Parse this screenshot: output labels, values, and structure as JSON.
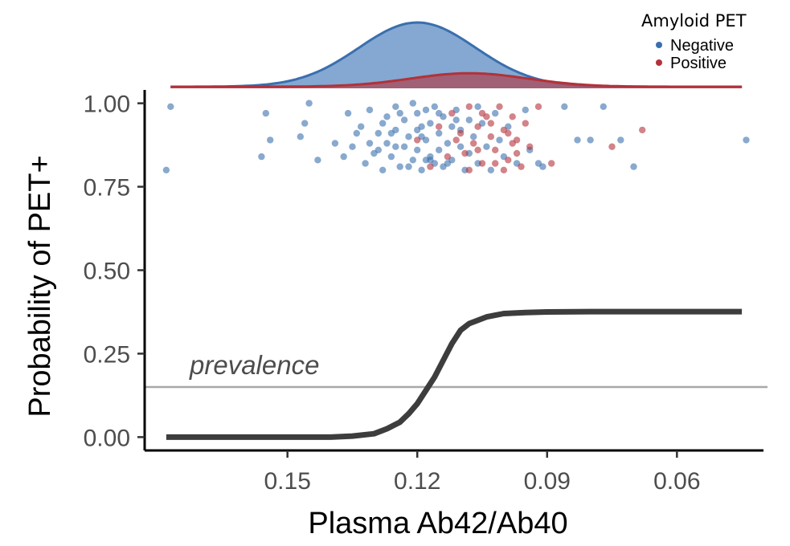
{
  "chart_data": {
    "type": "line",
    "xlabel": "Plasma Ab42/Ab40",
    "ylabel": "Probability of PET+",
    "x_reversed": true,
    "xlim": [
      0.183,
      0.04
    ],
    "ylim": [
      -0.04,
      1.04
    ],
    "x_ticks": [
      {
        "value": 0.15,
        "label": "0.15"
      },
      {
        "value": 0.12,
        "label": "0.12"
      },
      {
        "value": 0.09,
        "label": "0.09"
      },
      {
        "value": 0.06,
        "label": "0.06"
      }
    ],
    "y_ticks": [
      {
        "value": 0.0,
        "label": "0.00"
      },
      {
        "value": 0.25,
        "label": "0.25"
      },
      {
        "value": 0.5,
        "label": "0.50"
      },
      {
        "value": 0.75,
        "label": "0.75"
      },
      {
        "value": 1.0,
        "label": "1.00"
      }
    ],
    "grid": false,
    "legend": {
      "title": "Amyloid PET",
      "position": "top-right",
      "entries": [
        {
          "label": "Negative",
          "color": "#3a6fae"
        },
        {
          "label": "Positive",
          "color": "#b2323a"
        }
      ]
    },
    "prevalence": {
      "y": 0.15,
      "label": "prevalence",
      "color": "#a8a8a8"
    },
    "probability_curve": {
      "color": "#3d3d3d",
      "x": [
        0.178,
        0.16,
        0.14,
        0.135,
        0.13,
        0.127,
        0.124,
        0.122,
        0.12,
        0.118,
        0.116,
        0.114,
        0.112,
        0.11,
        0.108,
        0.106,
        0.104,
        0.102,
        0.1,
        0.095,
        0.09,
        0.08,
        0.06,
        0.045
      ],
      "y": [
        0.0,
        0.0,
        0.0,
        0.003,
        0.01,
        0.025,
        0.045,
        0.07,
        0.1,
        0.14,
        0.18,
        0.23,
        0.28,
        0.32,
        0.34,
        0.35,
        0.36,
        0.365,
        0.37,
        0.373,
        0.375,
        0.376,
        0.376,
        0.376
      ]
    },
    "density": {
      "Negative": {
        "mean": 0.12,
        "sd": 0.0135,
        "relative_height": 1.0,
        "color": "#3a6fae",
        "fill": "#7da3cf"
      },
      "Positive": {
        "mean": 0.108,
        "sd": 0.0135,
        "relative_height": 0.21,
        "color": "#b2323a",
        "fill": "#a84d5e"
      }
    },
    "series": [
      {
        "name": "Negative",
        "color": "#3a6fae",
        "points": [
          [
            0.177,
            0.99
          ],
          [
            0.178,
            0.8
          ],
          [
            0.155,
            0.97
          ],
          [
            0.156,
            0.84
          ],
          [
            0.154,
            0.89
          ],
          [
            0.145,
            1.0
          ],
          [
            0.147,
            0.9
          ],
          [
            0.146,
            0.94
          ],
          [
            0.143,
            0.83
          ],
          [
            0.139,
            0.88
          ],
          [
            0.136,
            0.97
          ],
          [
            0.135,
            0.87
          ],
          [
            0.133,
            0.93
          ],
          [
            0.132,
            0.82
          ],
          [
            0.131,
            0.98
          ],
          [
            0.13,
            0.85
          ],
          [
            0.129,
            0.91
          ],
          [
            0.128,
            0.8
          ],
          [
            0.127,
            0.96
          ],
          [
            0.127,
            0.88
          ],
          [
            0.126,
            0.84
          ],
          [
            0.125,
            0.99
          ],
          [
            0.125,
            0.92
          ],
          [
            0.124,
            0.81
          ],
          [
            0.123,
            0.95
          ],
          [
            0.123,
            0.87
          ],
          [
            0.122,
            0.9
          ],
          [
            0.121,
            1.0
          ],
          [
            0.121,
            0.83
          ],
          [
            0.12,
            0.97
          ],
          [
            0.12,
            0.86
          ],
          [
            0.119,
            0.93
          ],
          [
            0.119,
            0.8
          ],
          [
            0.118,
            0.98
          ],
          [
            0.118,
            0.89
          ],
          [
            0.117,
            0.84
          ],
          [
            0.117,
            0.94
          ],
          [
            0.116,
            0.82
          ],
          [
            0.116,
            0.99
          ],
          [
            0.115,
            0.91
          ],
          [
            0.115,
            0.86
          ],
          [
            0.114,
            0.96
          ],
          [
            0.114,
            0.81
          ],
          [
            0.113,
            0.88
          ],
          [
            0.112,
            0.93
          ],
          [
            0.112,
            0.83
          ],
          [
            0.111,
            0.98
          ],
          [
            0.11,
            0.87
          ],
          [
            0.11,
            0.92
          ],
          [
            0.109,
            0.8
          ],
          [
            0.108,
            0.95
          ],
          [
            0.108,
            0.85
          ],
          [
            0.107,
            0.9
          ],
          [
            0.106,
            0.99
          ],
          [
            0.106,
            0.82
          ],
          [
            0.105,
            0.94
          ],
          [
            0.104,
            0.87
          ],
          [
            0.103,
            0.8
          ],
          [
            0.102,
            0.97
          ],
          [
            0.101,
            0.89
          ],
          [
            0.1,
            0.84
          ],
          [
            0.099,
            0.93
          ],
          [
            0.097,
            0.82
          ],
          [
            0.095,
            0.98
          ],
          [
            0.094,
            0.86
          ],
          [
            0.092,
            0.82
          ],
          [
            0.091,
            0.81
          ],
          [
            0.086,
            0.99
          ],
          [
            0.083,
            0.89
          ],
          [
            0.077,
            0.99
          ],
          [
            0.08,
            0.89
          ],
          [
            0.073,
            0.89
          ],
          [
            0.07,
            0.81
          ],
          [
            0.044,
            0.89
          ],
          [
            0.125,
            0.87
          ],
          [
            0.122,
            0.81
          ],
          [
            0.119,
            0.9
          ],
          [
            0.117,
            0.83
          ],
          [
            0.128,
            0.94
          ],
          [
            0.131,
            0.88
          ],
          [
            0.134,
            0.91
          ],
          [
            0.137,
            0.84
          ],
          [
            0.124,
            0.97
          ],
          [
            0.113,
            0.82
          ],
          [
            0.111,
            0.95
          ],
          [
            0.126,
            0.91
          ],
          [
            0.129,
            0.86
          ],
          [
            0.12,
            0.92
          ],
          [
            0.118,
            0.83
          ],
          [
            0.115,
            0.97
          ]
        ]
      },
      {
        "name": "Positive",
        "color": "#b2323a",
        "points": [
          [
            0.112,
            0.97
          ],
          [
            0.11,
            0.91
          ],
          [
            0.109,
            0.85
          ],
          [
            0.108,
            0.99
          ],
          [
            0.107,
            0.88
          ],
          [
            0.106,
            0.93
          ],
          [
            0.105,
            0.82
          ],
          [
            0.104,
            0.96
          ],
          [
            0.103,
            0.9
          ],
          [
            0.102,
            0.86
          ],
          [
            0.101,
            0.99
          ],
          [
            0.1,
            0.92
          ],
          [
            0.099,
            0.83
          ],
          [
            0.098,
            0.96
          ],
          [
            0.097,
            0.89
          ],
          [
            0.096,
            0.81
          ],
          [
            0.095,
            0.94
          ],
          [
            0.094,
            0.87
          ],
          [
            0.092,
            0.99
          ],
          [
            0.113,
            0.84
          ],
          [
            0.115,
            0.93
          ],
          [
            0.117,
            0.81
          ],
          [
            0.12,
            0.89
          ],
          [
            0.108,
            0.8
          ],
          [
            0.105,
            0.97
          ],
          [
            0.102,
            0.82
          ],
          [
            0.099,
            0.91
          ],
          [
            0.097,
            0.85
          ],
          [
            0.089,
            0.82
          ],
          [
            0.075,
            0.87
          ],
          [
            0.068,
            0.92
          ],
          [
            0.111,
            0.89
          ],
          [
            0.106,
            0.86
          ],
          [
            0.103,
            0.94
          ],
          [
            0.1,
            0.8
          ],
          [
            0.098,
            0.88
          ]
        ]
      }
    ]
  }
}
